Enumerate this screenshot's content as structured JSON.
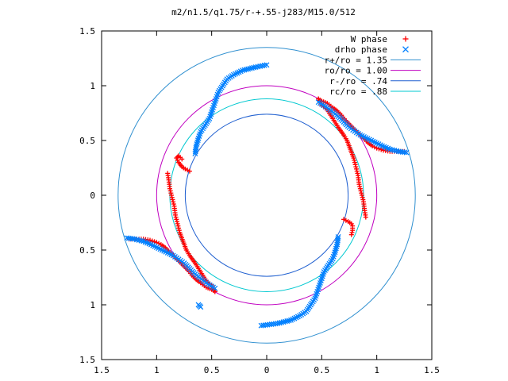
{
  "chart_data": {
    "type": "scatter",
    "title": "m2/n1.5/q1.75/r-+.55-j283/M15.0/512",
    "xlabel": "",
    "ylabel": "",
    "xlim": [
      -1.5,
      1.5
    ],
    "ylim": [
      -1.5,
      1.5
    ],
    "x_tick_values": [
      -1.5,
      -1,
      -0.5,
      0,
      0.5,
      1,
      1.5
    ],
    "y_tick_values": [
      -1.5,
      -1,
      -0.5,
      0,
      0.5,
      1,
      1.5
    ],
    "x_tick_labels": [
      "1.5",
      "1",
      "0.5",
      "0",
      "0.5",
      "1",
      "1.5"
    ],
    "y_tick_labels": [
      "1.5",
      "1",
      "0.5",
      "0",
      "0.5",
      "1",
      "1.5"
    ],
    "grid": false,
    "legend_position": "top-right",
    "legend": [
      {
        "label": "W phase",
        "kind": "marker",
        "marker": "plus",
        "color": "#ff0000"
      },
      {
        "label": "drho phase",
        "kind": "marker",
        "marker": "cross",
        "color": "#0080ff"
      },
      {
        "label": "r+/ro = 1.35",
        "kind": "line",
        "color": "#3090d0"
      },
      {
        "label": "ro/ro = 1.00",
        "kind": "line",
        "color": "#c000c0"
      },
      {
        "label": "r-/ro = .74",
        "kind": "line",
        "color": "#2060d0"
      },
      {
        "label": "rc/ro = .88",
        "kind": "line",
        "color": "#00c8d0"
      }
    ],
    "circles": [
      {
        "name": "r+/ro = 1.35",
        "radius": 1.35,
        "color": "#3090d0"
      },
      {
        "name": "ro/ro = 1.00",
        "radius": 1.0,
        "color": "#c000c0"
      },
      {
        "name": "r-/ro = .74",
        "radius": 0.74,
        "color": "#2060d0"
      },
      {
        "name": "rc/ro = .88",
        "radius": 0.88,
        "color": "#00c8d0"
      }
    ],
    "series": [
      {
        "name": "W phase",
        "color": "#ff0000",
        "segments": [
          [
            [
              0.47,
              0.88
            ],
            [
              0.5,
              0.86
            ],
            [
              0.55,
              0.84
            ],
            [
              0.6,
              0.8
            ],
            [
              0.64,
              0.77
            ],
            [
              0.68,
              0.73
            ],
            [
              0.72,
              0.68
            ],
            [
              0.76,
              0.64
            ],
            [
              0.8,
              0.6
            ],
            [
              0.84,
              0.56
            ],
            [
              0.88,
              0.52
            ],
            [
              0.92,
              0.48
            ],
            [
              0.96,
              0.45
            ],
            [
              1.0,
              0.43
            ],
            [
              1.06,
              0.41
            ],
            [
              1.12,
              0.4
            ],
            [
              1.18,
              0.4
            ],
            [
              1.25,
              0.4
            ]
          ],
          [
            [
              0.47,
              0.88
            ],
            [
              0.5,
              0.82
            ],
            [
              0.55,
              0.78
            ],
            [
              0.6,
              0.7
            ],
            [
              0.65,
              0.62
            ],
            [
              0.7,
              0.55
            ],
            [
              0.73,
              0.5
            ],
            [
              0.76,
              0.42
            ],
            [
              0.79,
              0.34
            ],
            [
              0.81,
              0.26
            ],
            [
              0.83,
              0.18
            ],
            [
              0.84,
              0.1
            ],
            [
              0.86,
              0.02
            ],
            [
              0.88,
              -0.06
            ],
            [
              0.89,
              -0.14
            ],
            [
              0.9,
              -0.2
            ]
          ],
          [
            [
              0.7,
              -0.22
            ],
            [
              0.74,
              -0.24
            ],
            [
              0.77,
              -0.26
            ],
            [
              0.78,
              -0.28
            ],
            [
              0.78,
              -0.32
            ],
            [
              0.77,
              -0.36
            ]
          ],
          [
            [
              -0.47,
              -0.88
            ],
            [
              -0.5,
              -0.86
            ],
            [
              -0.55,
              -0.84
            ],
            [
              -0.6,
              -0.8
            ],
            [
              -0.64,
              -0.77
            ],
            [
              -0.68,
              -0.73
            ],
            [
              -0.72,
              -0.68
            ],
            [
              -0.76,
              -0.64
            ],
            [
              -0.8,
              -0.6
            ],
            [
              -0.84,
              -0.56
            ],
            [
              -0.88,
              -0.52
            ],
            [
              -0.92,
              -0.48
            ],
            [
              -0.96,
              -0.45
            ],
            [
              -1.0,
              -0.43
            ],
            [
              -1.06,
              -0.41
            ],
            [
              -1.12,
              -0.4
            ],
            [
              -1.18,
              -0.4
            ],
            [
              -1.25,
              -0.4
            ]
          ],
          [
            [
              -0.47,
              -0.88
            ],
            [
              -0.5,
              -0.82
            ],
            [
              -0.55,
              -0.78
            ],
            [
              -0.6,
              -0.7
            ],
            [
              -0.65,
              -0.62
            ],
            [
              -0.7,
              -0.55
            ],
            [
              -0.73,
              -0.5
            ],
            [
              -0.76,
              -0.42
            ],
            [
              -0.79,
              -0.34
            ],
            [
              -0.81,
              -0.26
            ],
            [
              -0.83,
              -0.18
            ],
            [
              -0.84,
              -0.1
            ],
            [
              -0.86,
              -0.02
            ],
            [
              -0.88,
              0.06
            ],
            [
              -0.89,
              0.14
            ],
            [
              -0.9,
              0.2
            ]
          ],
          [
            [
              -0.7,
              0.22
            ],
            [
              -0.74,
              0.24
            ],
            [
              -0.77,
              0.26
            ],
            [
              -0.8,
              0.3
            ],
            [
              -0.82,
              0.34
            ],
            [
              -0.8,
              0.36
            ],
            [
              -0.77,
              0.33
            ]
          ]
        ]
      },
      {
        "name": "drho phase",
        "color": "#0080ff",
        "segments": [
          [
            [
              -0.65,
              0.38
            ],
            [
              -0.64,
              0.45
            ],
            [
              -0.62,
              0.52
            ],
            [
              -0.6,
              0.58
            ],
            [
              -0.56,
              0.64
            ],
            [
              -0.52,
              0.7
            ],
            [
              -0.5,
              0.76
            ],
            [
              -0.48,
              0.82
            ],
            [
              -0.46,
              0.88
            ],
            [
              -0.44,
              0.94
            ],
            [
              -0.4,
              1.0
            ],
            [
              -0.36,
              1.06
            ],
            [
              -0.3,
              1.1
            ],
            [
              -0.22,
              1.14
            ],
            [
              -0.1,
              1.17
            ],
            [
              0.0,
              1.19
            ]
          ],
          [
            [
              0.65,
              -0.38
            ],
            [
              0.64,
              -0.45
            ],
            [
              0.62,
              -0.52
            ],
            [
              0.6,
              -0.58
            ],
            [
              0.56,
              -0.64
            ],
            [
              0.52,
              -0.7
            ],
            [
              0.5,
              -0.76
            ],
            [
              0.48,
              -0.82
            ],
            [
              0.46,
              -0.88
            ],
            [
              0.44,
              -0.94
            ],
            [
              0.4,
              -1.0
            ],
            [
              0.36,
              -1.06
            ],
            [
              0.3,
              -1.1
            ],
            [
              0.22,
              -1.14
            ],
            [
              0.1,
              -1.17
            ],
            [
              -0.05,
              -1.19
            ]
          ],
          [
            [
              0.47,
              0.85
            ],
            [
              0.55,
              0.8
            ],
            [
              0.65,
              0.72
            ],
            [
              0.75,
              0.62
            ],
            [
              0.85,
              0.55
            ],
            [
              0.95,
              0.5
            ],
            [
              1.05,
              0.45
            ],
            [
              1.12,
              0.42
            ],
            [
              1.2,
              0.4
            ],
            [
              1.27,
              0.39
            ]
          ],
          [
            [
              -0.47,
              -0.85
            ],
            [
              -0.55,
              -0.8
            ],
            [
              -0.65,
              -0.72
            ],
            [
              -0.75,
              -0.62
            ],
            [
              -0.85,
              -0.55
            ],
            [
              -0.95,
              -0.5
            ],
            [
              -1.05,
              -0.45
            ],
            [
              -1.12,
              -0.42
            ],
            [
              -1.2,
              -0.4
            ],
            [
              -1.27,
              -0.39
            ]
          ],
          [
            [
              -0.6,
              -1.02
            ],
            [
              -0.62,
              -1.0
            ]
          ]
        ]
      }
    ]
  }
}
